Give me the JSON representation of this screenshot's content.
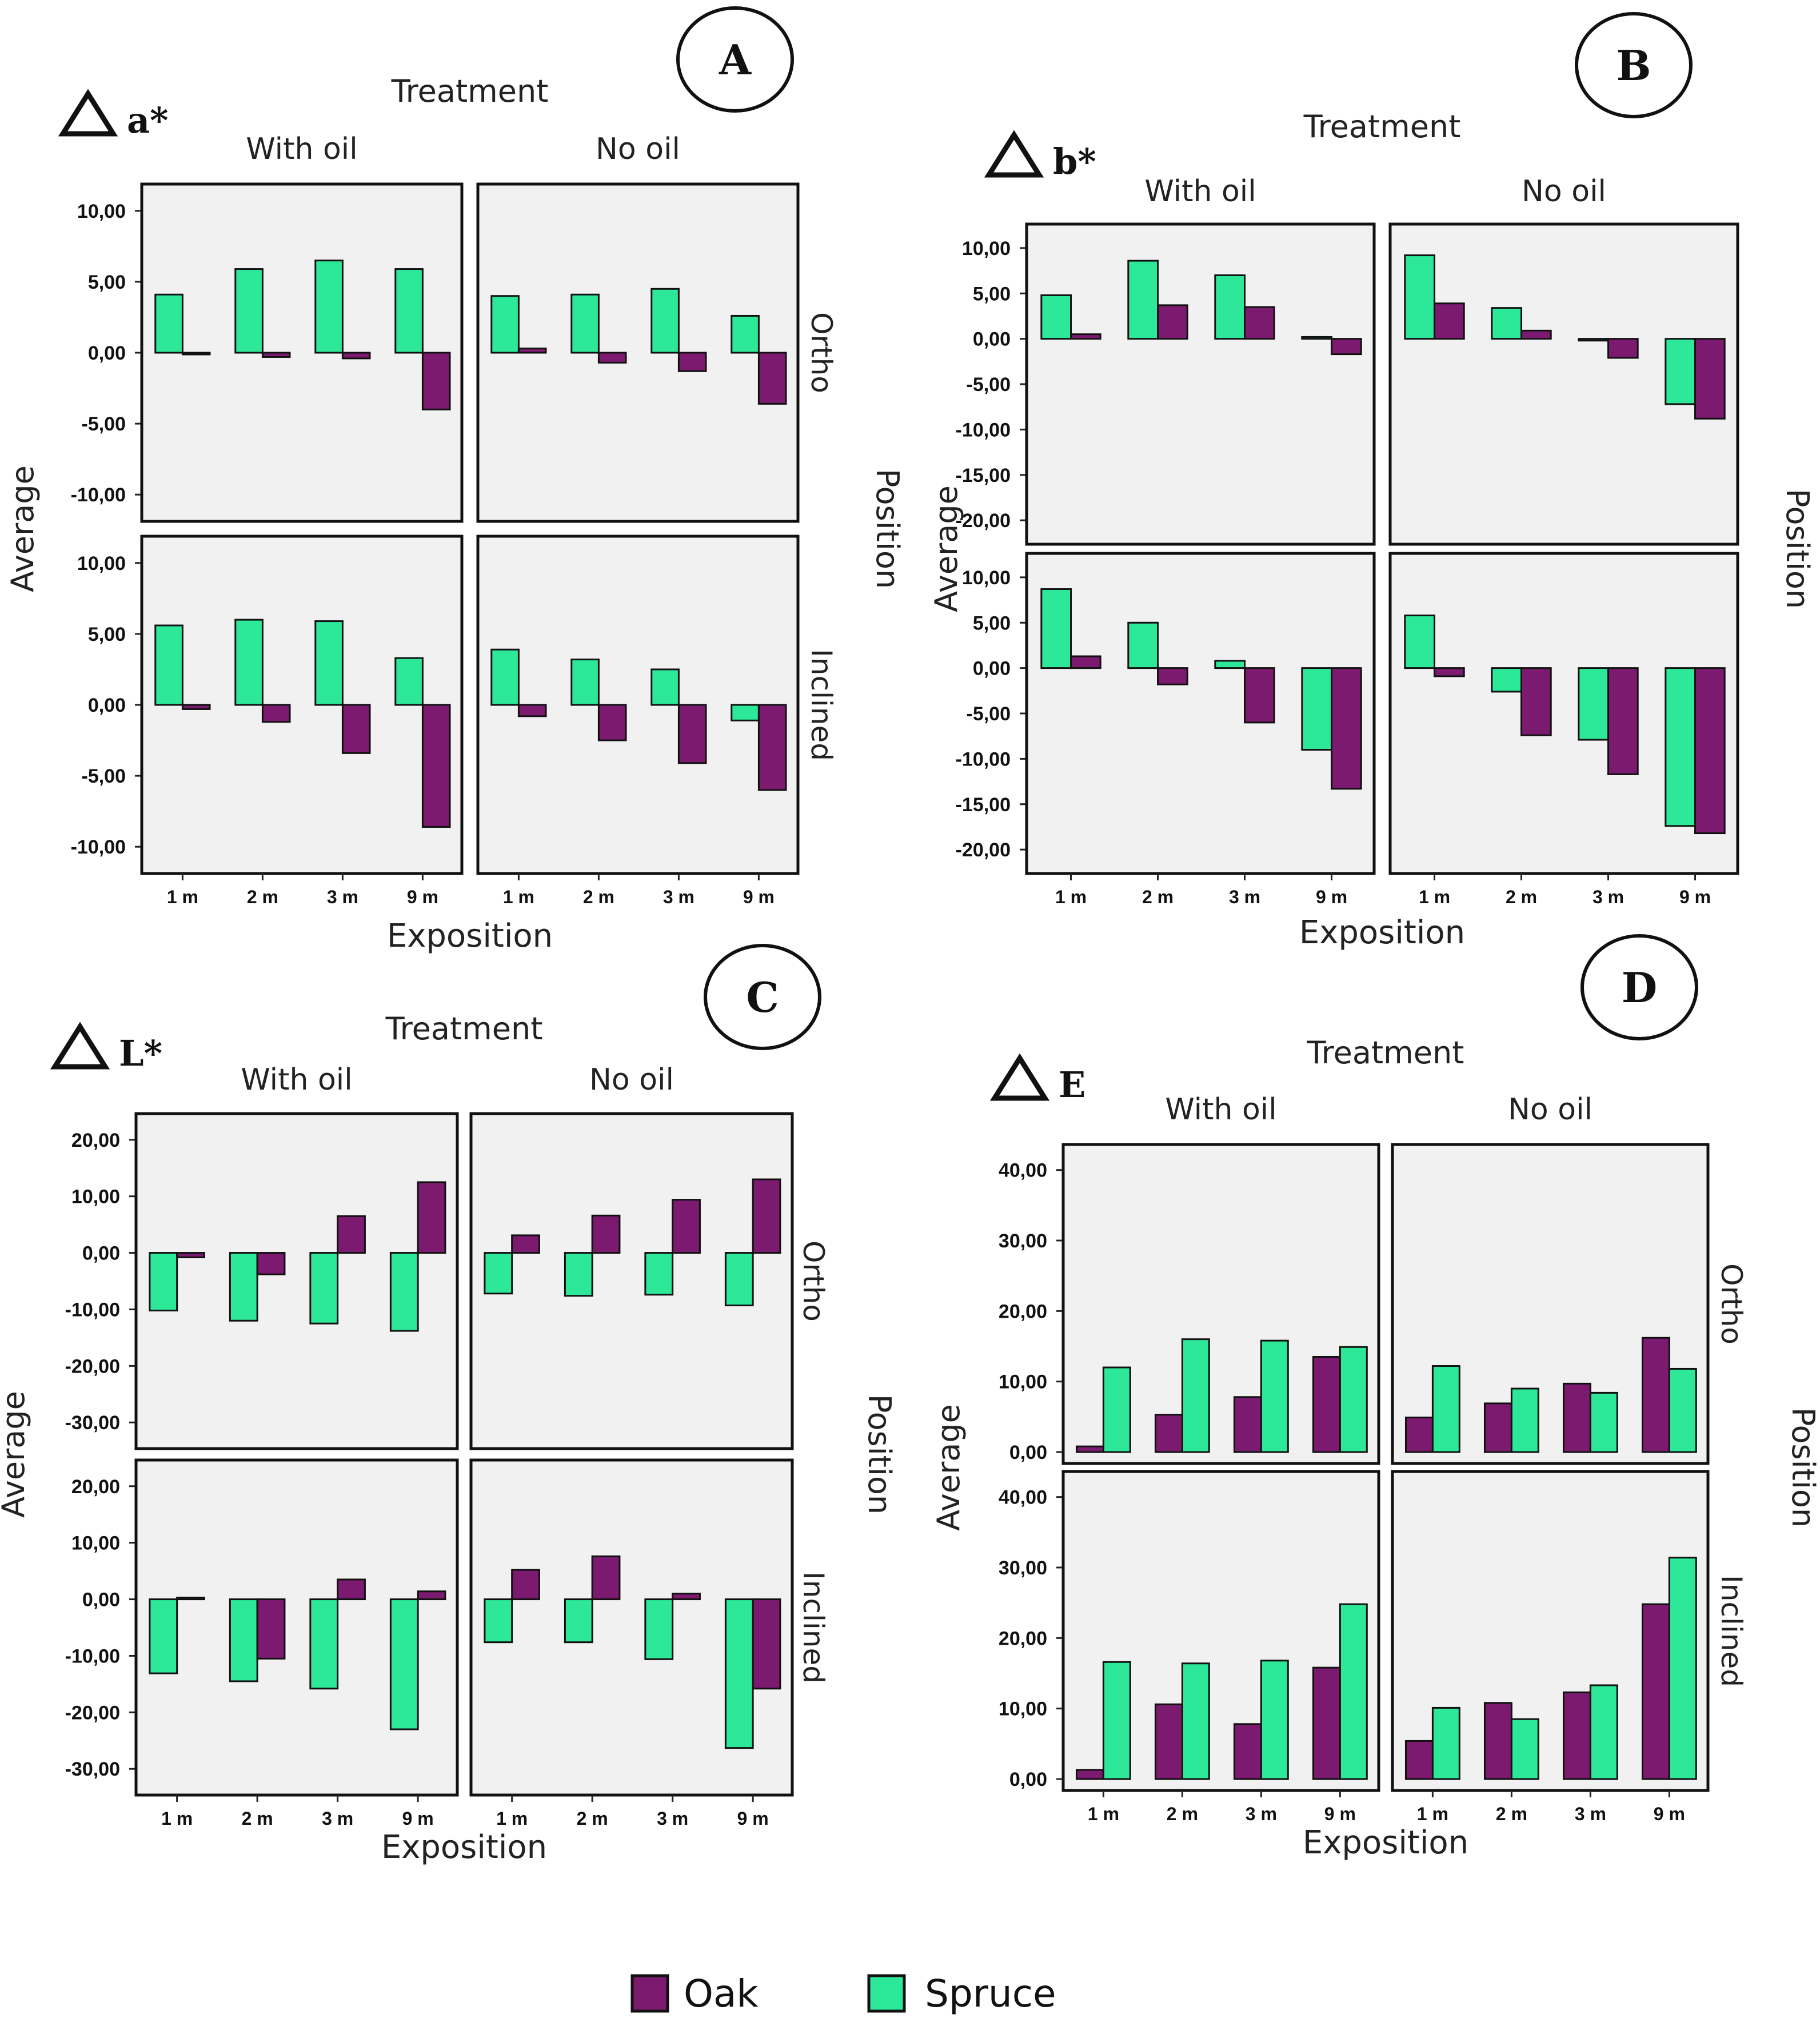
{
  "colors": {
    "oak": "#7b1a6e",
    "spruce": "#2ee89a",
    "panel_bg": "#f1f1f1",
    "axis": "#222222"
  },
  "legend": {
    "oak_label": "Oak",
    "spruce_label": "Spruce"
  },
  "chart_data": [
    {
      "id": "A",
      "type": "bar",
      "metric": "a*",
      "symbol": "Δ",
      "treatment_label": "Treatment",
      "position_label": "Position",
      "xlabel": "Exposition",
      "ylabel": "Average",
      "columns": [
        "With oil",
        "No oil"
      ],
      "rows": [
        "Ortho",
        "Inclined"
      ],
      "categories": [
        "1 m",
        "2 m",
        "3 m",
        "9 m"
      ],
      "ylim": [
        -11,
        11
      ],
      "yticks": [
        10,
        5,
        0,
        -5,
        -10
      ],
      "ytick_labels": [
        "10,00",
        "5,00",
        "0,00",
        "-5,00",
        "-10,00"
      ],
      "series_order": [
        "Spruce",
        "Oak"
      ],
      "panels": [
        {
          "treatment": "With oil",
          "position": "Ortho",
          "series": [
            {
              "name": "Spruce",
              "values": [
                4.1,
                5.9,
                6.5,
                5.9
              ]
            },
            {
              "name": "Oak",
              "values": [
                -0.1,
                -0.3,
                -0.4,
                -4.0
              ]
            }
          ]
        },
        {
          "treatment": "No oil",
          "position": "Ortho",
          "series": [
            {
              "name": "Spruce",
              "values": [
                4.0,
                4.1,
                4.5,
                2.6
              ]
            },
            {
              "name": "Oak",
              "values": [
                0.3,
                -0.7,
                -1.3,
                -3.6
              ]
            }
          ]
        },
        {
          "treatment": "With oil",
          "position": "Inclined",
          "series": [
            {
              "name": "Spruce",
              "values": [
                5.6,
                6.0,
                5.9,
                3.3
              ]
            },
            {
              "name": "Oak",
              "values": [
                -0.3,
                -1.2,
                -3.4,
                -8.6
              ]
            }
          ]
        },
        {
          "treatment": "No oil",
          "position": "Inclined",
          "series": [
            {
              "name": "Spruce",
              "values": [
                3.9,
                3.2,
                2.5,
                -1.1
              ]
            },
            {
              "name": "Oak",
              "values": [
                -0.8,
                -2.5,
                -4.1,
                -6.0
              ]
            }
          ]
        }
      ]
    },
    {
      "id": "B",
      "type": "bar",
      "metric": "b*",
      "symbol": "Δ",
      "treatment_label": "Treatment",
      "position_label": "Position",
      "xlabel": "Exposition",
      "ylabel": "Average",
      "columns": [
        "With oil",
        "No oil"
      ],
      "rows": [
        "Ortho",
        "Inclined"
      ],
      "categories": [
        "1 m",
        "2 m",
        "3 m",
        "9 m"
      ],
      "ylim": [
        -21,
        11
      ],
      "yticks": [
        10,
        5,
        0,
        -5,
        -10,
        -15,
        -20
      ],
      "ytick_labels": [
        "10,00",
        "5,00",
        "0,00",
        "-5,00",
        "-10,00",
        "-15,00",
        "-20,00"
      ],
      "series_order": [
        "Spruce",
        "Oak"
      ],
      "panels": [
        {
          "treatment": "With oil",
          "position": "Ortho",
          "series": [
            {
              "name": "Spruce",
              "values": [
                4.8,
                8.6,
                7.0,
                0.2
              ]
            },
            {
              "name": "Oak",
              "values": [
                0.5,
                3.7,
                3.5,
                -1.7
              ]
            }
          ]
        },
        {
          "treatment": "No oil",
          "position": "Ortho",
          "series": [
            {
              "name": "Spruce",
              "values": [
                9.2,
                3.4,
                -0.2,
                -7.2
              ]
            },
            {
              "name": "Oak",
              "values": [
                3.9,
                0.9,
                -2.1,
                -8.8
              ]
            }
          ]
        },
        {
          "treatment": "With oil",
          "position": "Inclined",
          "series": [
            {
              "name": "Spruce",
              "values": [
                8.7,
                5.0,
                0.8,
                -9.0
              ]
            },
            {
              "name": "Oak",
              "values": [
                1.3,
                -1.8,
                -6.0,
                -13.3
              ]
            }
          ]
        },
        {
          "treatment": "No oil",
          "position": "Inclined",
          "series": [
            {
              "name": "Spruce",
              "values": [
                5.8,
                -2.6,
                -7.9,
                -17.4
              ]
            },
            {
              "name": "Oak",
              "values": [
                -0.9,
                -7.4,
                -11.7,
                -18.2
              ]
            }
          ]
        }
      ]
    },
    {
      "id": "C",
      "type": "bar",
      "metric": "L*",
      "symbol": "Δ",
      "treatment_label": "Treatment",
      "position_label": "Position",
      "xlabel": "Exposition",
      "ylabel": "Average",
      "columns": [
        "With oil",
        "No oil"
      ],
      "rows": [
        "Ortho",
        "Inclined"
      ],
      "categories": [
        "1 m",
        "2 m",
        "3 m",
        "9 m"
      ],
      "ylim": [
        -32,
        22
      ],
      "yticks": [
        20,
        10,
        0,
        -10,
        -20,
        -30
      ],
      "ytick_labels": [
        "20,00",
        "10,00",
        "0,00",
        "-10,00",
        "-20,00",
        "-30,00"
      ],
      "series_order": [
        "Spruce",
        "Oak"
      ],
      "panels": [
        {
          "treatment": "With oil",
          "position": "Ortho",
          "series": [
            {
              "name": "Spruce",
              "values": [
                -10.2,
                -12.0,
                -12.5,
                -13.8
              ]
            },
            {
              "name": "Oak",
              "values": [
                -0.8,
                -3.8,
                6.5,
                12.5
              ]
            }
          ]
        },
        {
          "treatment": "No oil",
          "position": "Ortho",
          "series": [
            {
              "name": "Spruce",
              "values": [
                -7.2,
                -7.6,
                -7.4,
                -9.3
              ]
            },
            {
              "name": "Oak",
              "values": [
                3.1,
                6.6,
                9.4,
                13.0
              ]
            }
          ]
        },
        {
          "treatment": "With oil",
          "position": "Inclined",
          "series": [
            {
              "name": "Spruce",
              "values": [
                -13.1,
                -14.5,
                -15.8,
                -23.0
              ]
            },
            {
              "name": "Oak",
              "values": [
                0.3,
                -10.5,
                3.5,
                1.4
              ]
            }
          ]
        },
        {
          "treatment": "No oil",
          "position": "Inclined",
          "series": [
            {
              "name": "Spruce",
              "values": [
                -7.6,
                -7.6,
                -10.6,
                -26.3
              ]
            },
            {
              "name": "Oak",
              "values": [
                5.2,
                7.6,
                1.0,
                -15.8
              ]
            }
          ]
        }
      ]
    },
    {
      "id": "D",
      "type": "bar",
      "metric": "E",
      "symbol": "Δ",
      "treatment_label": "Treatment",
      "position_label": "Position",
      "xlabel": "Exposition",
      "ylabel": "Average",
      "columns": [
        "With oil",
        "No oil"
      ],
      "rows": [
        "Ortho",
        "Inclined"
      ],
      "categories": [
        "1 m",
        "2 m",
        "3 m",
        "9 m"
      ],
      "ylim": [
        0,
        42
      ],
      "yticks": [
        40,
        30,
        20,
        10,
        0
      ],
      "ytick_labels": [
        "40,00",
        "30,00",
        "20,00",
        "10,00",
        "0,00"
      ],
      "series_order": [
        "Oak",
        "Spruce"
      ],
      "panels": [
        {
          "treatment": "With oil",
          "position": "Ortho",
          "series": [
            {
              "name": "Oak",
              "values": [
                0.8,
                5.3,
                7.8,
                13.5
              ]
            },
            {
              "name": "Spruce",
              "values": [
                12.0,
                16.0,
                15.8,
                14.9
              ]
            }
          ]
        },
        {
          "treatment": "No oil",
          "position": "Ortho",
          "series": [
            {
              "name": "Oak",
              "values": [
                4.9,
                6.9,
                9.7,
                16.2
              ]
            },
            {
              "name": "Spruce",
              "values": [
                12.2,
                9.0,
                8.4,
                11.8
              ]
            }
          ]
        },
        {
          "treatment": "With oil",
          "position": "Inclined",
          "series": [
            {
              "name": "Oak",
              "values": [
                1.3,
                10.6,
                7.8,
                15.8
              ]
            },
            {
              "name": "Spruce",
              "values": [
                16.6,
                16.4,
                16.8,
                24.8
              ]
            }
          ]
        },
        {
          "treatment": "No oil",
          "position": "Inclined",
          "series": [
            {
              "name": "Oak",
              "values": [
                5.4,
                10.8,
                12.3,
                24.8
              ]
            },
            {
              "name": "Spruce",
              "values": [
                10.1,
                8.5,
                13.3,
                31.4
              ]
            }
          ]
        }
      ]
    }
  ]
}
